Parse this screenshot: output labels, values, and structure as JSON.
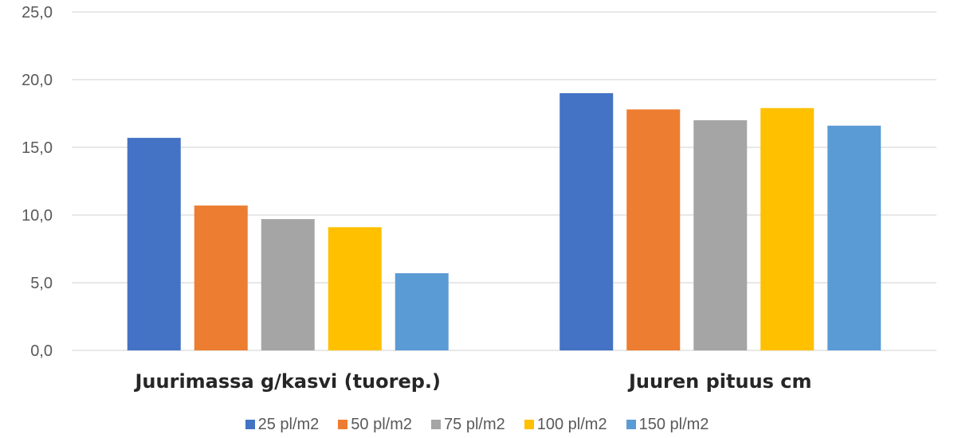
{
  "chart_data": {
    "type": "bar",
    "categories": [
      "Juurimassa g/kasvi (tuorep.)",
      "Juuren pituus cm"
    ],
    "series": [
      {
        "name": "25 pl/m2",
        "values": [
          15.7,
          19.0
        ],
        "color": "#4472C4"
      },
      {
        "name": "50 pl/m2",
        "values": [
          10.7,
          17.8
        ],
        "color": "#ED7D31"
      },
      {
        "name": "75 pl/m2",
        "values": [
          9.7,
          17.0
        ],
        "color": "#A5A5A5"
      },
      {
        "name": "100 pl/m2",
        "values": [
          9.1,
          17.9
        ],
        "color": "#FFC000"
      },
      {
        "name": "150 pl/m2",
        "values": [
          5.7,
          16.6
        ],
        "color": "#5B9BD5"
      }
    ],
    "ylim": [
      0,
      25
    ],
    "yticks": [
      "0,0",
      "5,0",
      "10,0",
      "15,0",
      "20,0",
      "25,0"
    ],
    "grid": true,
    "legend_position": "bottom"
  }
}
